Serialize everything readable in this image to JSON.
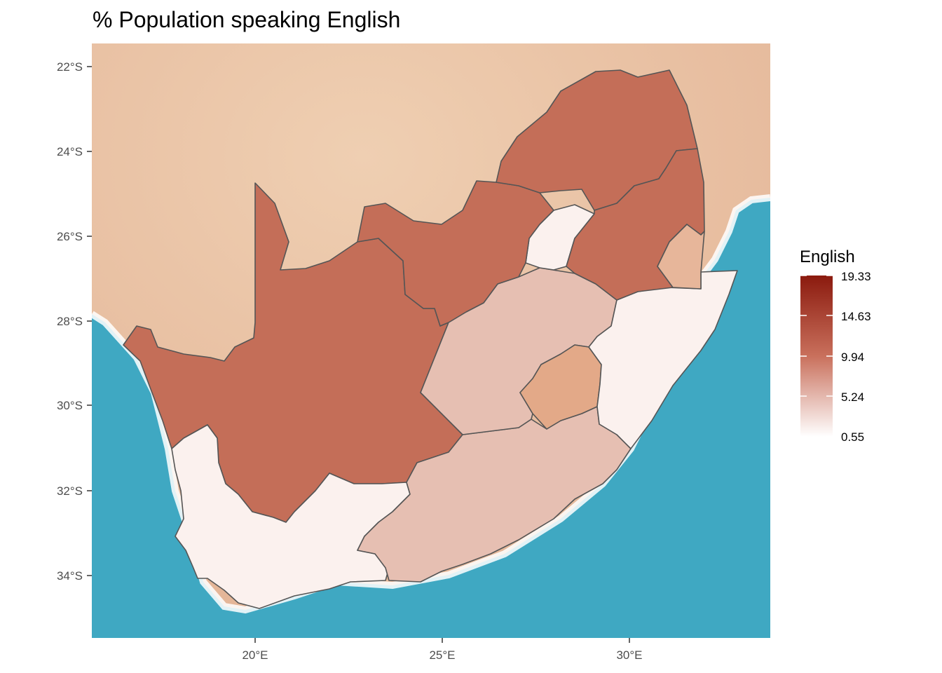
{
  "title": "% Population speaking English",
  "axes": {
    "y_ticks": [
      "22°S",
      "24°S",
      "26°S",
      "28°S",
      "30°S",
      "32°S",
      "34°S"
    ],
    "x_ticks": [
      "20°E",
      "25°E",
      "30°E"
    ]
  },
  "legend": {
    "title": "English",
    "labels": [
      "19.33",
      "14.63",
      "9.94",
      "5.24",
      "0.55"
    ],
    "color_high": "#8B1A0E",
    "color_low": "#FFFFFF"
  },
  "colors": {
    "ocean": "#3FA8C2",
    "land": "#E8C4A4",
    "high_region": "#C46E58",
    "mid_region": "#E6BFB2",
    "low_region": "#FBF1EE",
    "lesotho": "#E3A988",
    "eswatini": "#E7B69A"
  },
  "chart_data": {
    "type": "choropleth",
    "title": "% Population speaking English",
    "legend_title": "English",
    "range": [
      0.55,
      19.33
    ],
    "legend_breaks": [
      19.33,
      14.63,
      9.94,
      5.24,
      0.55
    ],
    "lon_ticks": [
      20,
      25,
      30
    ],
    "lat_ticks": [
      -22,
      -24,
      -26,
      -28,
      -30,
      -32,
      -34
    ]
  }
}
